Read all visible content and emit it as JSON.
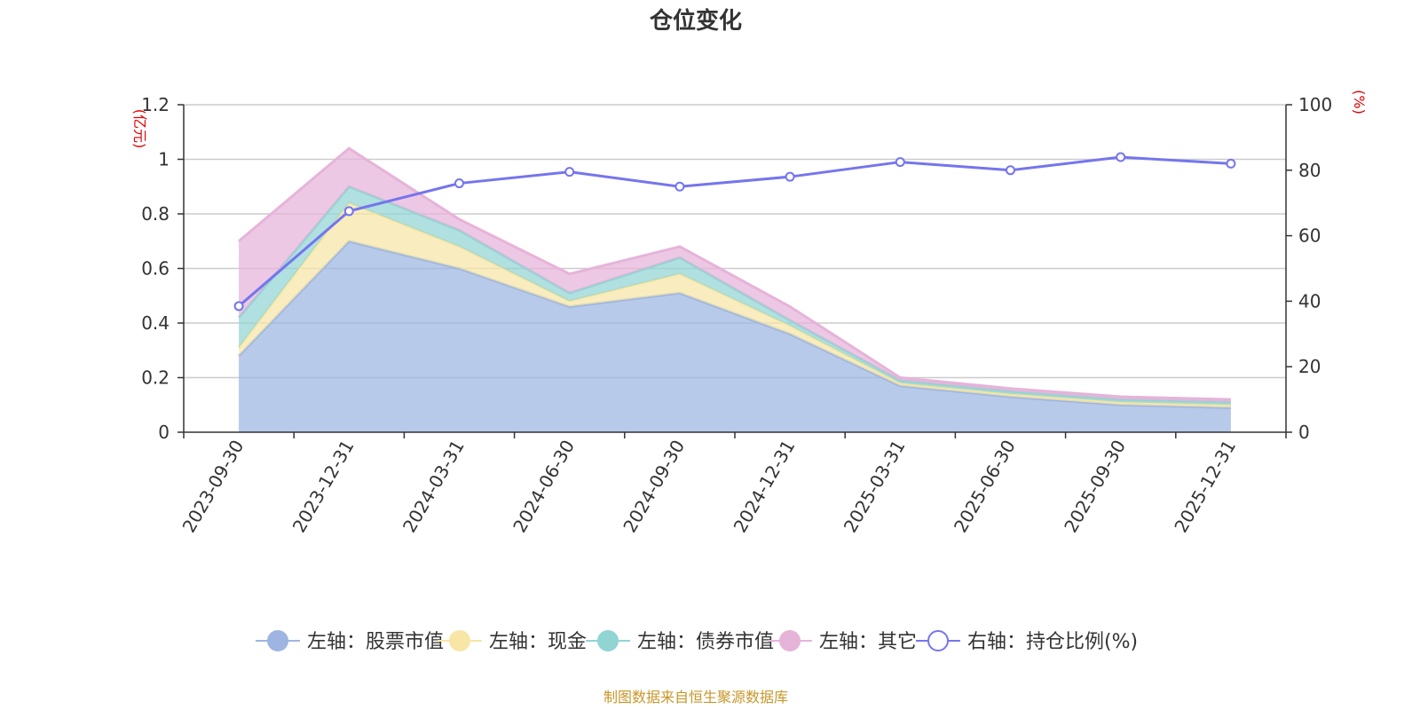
{
  "chart_data": {
    "type": "area",
    "title": "仓位变化",
    "left_axis_unit": "(亿元)",
    "right_axis_unit": "(%)",
    "categories": [
      "2023-09-30",
      "2023-12-31",
      "2024-03-31",
      "2024-06-30",
      "2024-09-30",
      "2024-12-31",
      "2025-03-31",
      "2025-06-30",
      "2025-09-30",
      "2025-12-31"
    ],
    "left_ylim": [
      0,
      1.2
    ],
    "left_ticks": [
      "0",
      "0.2",
      "0.4",
      "0.6",
      "0.8",
      "1",
      "1.2"
    ],
    "right_ylim": [
      0,
      100
    ],
    "right_ticks": [
      "0",
      "20",
      "40",
      "60",
      "80",
      "100"
    ],
    "stacked_series": [
      {
        "name": "左轴：股票市值",
        "color": "#9db5e0",
        "values": [
          0.28,
          0.7,
          0.6,
          0.46,
          0.51,
          0.36,
          0.17,
          0.13,
          0.1,
          0.09
        ]
      },
      {
        "name": "左轴：现金",
        "color": "#f7e6a6",
        "values": [
          0.03,
          0.14,
          0.08,
          0.02,
          0.07,
          0.03,
          0.01,
          0.01,
          0.01,
          0.01
        ]
      },
      {
        "name": "左轴：债券市值",
        "color": "#91d4d4",
        "values": [
          0.11,
          0.06,
          0.06,
          0.03,
          0.06,
          0.02,
          0.01,
          0.01,
          0.01,
          0.01
        ]
      },
      {
        "name": "左轴：其它",
        "color": "#e6b3d9",
        "values": [
          0.28,
          0.14,
          0.04,
          0.07,
          0.04,
          0.05,
          0.01,
          0.01,
          0.01,
          0.01
        ]
      }
    ],
    "line_series": {
      "name": "右轴：持仓比例(%)",
      "color": "#7575ee",
      "values": [
        38.5,
        67.5,
        76,
        79.5,
        75,
        78,
        82.5,
        80,
        84,
        82
      ]
    },
    "legend_position": "bottom",
    "source_text": "制图数据来自恒生聚源数据库"
  }
}
